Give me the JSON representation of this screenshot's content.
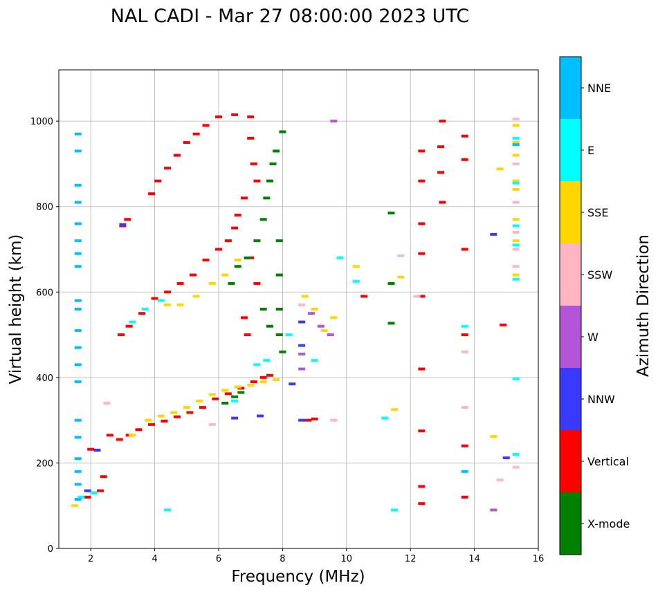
{
  "chart_data": {
    "type": "scatter",
    "title": "NAL CADI - Mar 27 08:00:00 2023 UTC",
    "xlabel": "Frequency (MHz)",
    "ylabel": "Virtual height (km)",
    "xlim": [
      1,
      16
    ],
    "ylim": [
      0,
      1120
    ],
    "xticks": [
      2,
      4,
      6,
      8,
      10,
      12,
      14,
      16
    ],
    "yticks": [
      0,
      200,
      400,
      600,
      800,
      1000
    ],
    "grid": true,
    "colorbar": {
      "label": "Azimuth Direction",
      "categories": [
        {
          "name": "X-mode",
          "color": "#008000"
        },
        {
          "name": "Vertical",
          "color": "#ff0000"
        },
        {
          "name": "NNW",
          "color": "#3a3aff"
        },
        {
          "name": "W",
          "color": "#b455d8"
        },
        {
          "name": "SSW",
          "color": "#ffb6c1"
        },
        {
          "name": "SSE",
          "color": "#ffd700"
        },
        {
          "name": "E",
          "color": "#00ffff"
        },
        {
          "name": "NNE",
          "color": "#00bfff"
        }
      ]
    },
    "series": [
      {
        "name": "Vertical",
        "points": [
          [
            1.9,
            120
          ],
          [
            2.1,
            130
          ],
          [
            2.3,
            135
          ],
          [
            2.0,
            232
          ],
          [
            2.2,
            230
          ],
          [
            2.4,
            168
          ],
          [
            2.6,
            265
          ],
          [
            2.9,
            255
          ],
          [
            3.2,
            265
          ],
          [
            3.5,
            278
          ],
          [
            3.9,
            290
          ],
          [
            4.3,
            298
          ],
          [
            4.7,
            308
          ],
          [
            5.1,
            318
          ],
          [
            5.5,
            330
          ],
          [
            5.9,
            350
          ],
          [
            6.3,
            362
          ],
          [
            6.7,
            375
          ],
          [
            7.1,
            390
          ],
          [
            7.4,
            400
          ],
          [
            7.6,
            405
          ],
          [
            2.95,
            500
          ],
          [
            3.2,
            520
          ],
          [
            3.6,
            550
          ],
          [
            4.0,
            585
          ],
          [
            4.4,
            600
          ],
          [
            4.8,
            620
          ],
          [
            5.2,
            640
          ],
          [
            5.6,
            675
          ],
          [
            6.0,
            700
          ],
          [
            6.3,
            720
          ],
          [
            6.5,
            750
          ],
          [
            6.6,
            780
          ],
          [
            6.8,
            820
          ],
          [
            3.0,
            755
          ],
          [
            3.15,
            770
          ],
          [
            3.9,
            830
          ],
          [
            4.1,
            860
          ],
          [
            4.4,
            890
          ],
          [
            4.7,
            920
          ],
          [
            5.0,
            950
          ],
          [
            5.3,
            970
          ],
          [
            5.6,
            990
          ],
          [
            6.0,
            1010
          ],
          [
            6.5,
            1015
          ],
          [
            7.0,
            1010
          ],
          [
            7.0,
            960
          ],
          [
            7.1,
            900
          ],
          [
            7.2,
            860
          ],
          [
            7.0,
            680
          ],
          [
            7.2,
            620
          ],
          [
            6.8,
            540
          ],
          [
            6.9,
            500
          ],
          [
            8.8,
            300
          ],
          [
            9.0,
            303
          ],
          [
            12.35,
            275
          ],
          [
            12.35,
            420
          ],
          [
            12.35,
            590
          ],
          [
            12.35,
            760
          ],
          [
            12.95,
            940
          ],
          [
            12.95,
            880
          ],
          [
            13.0,
            1000
          ],
          [
            13.0,
            810
          ],
          [
            13.7,
            965
          ],
          [
            13.7,
            910
          ],
          [
            13.7,
            700
          ],
          [
            13.7,
            500
          ],
          [
            13.7,
            240
          ],
          [
            13.7,
            120
          ],
          [
            12.35,
            145
          ],
          [
            12.35,
            105
          ],
          [
            12.35,
            690
          ],
          [
            12.35,
            860
          ],
          [
            12.35,
            930
          ],
          [
            14.9,
            523
          ],
          [
            10.55,
            590
          ]
        ]
      },
      {
        "name": "X-mode",
        "points": [
          [
            6.2,
            340
          ],
          [
            6.5,
            355
          ],
          [
            6.7,
            365
          ],
          [
            6.4,
            620
          ],
          [
            6.6,
            660
          ],
          [
            6.9,
            680
          ],
          [
            7.2,
            720
          ],
          [
            7.4,
            770
          ],
          [
            7.5,
            820
          ],
          [
            7.6,
            860
          ],
          [
            7.7,
            900
          ],
          [
            7.8,
            930
          ],
          [
            7.9,
            720
          ],
          [
            7.9,
            640
          ],
          [
            7.9,
            560
          ],
          [
            7.9,
            500
          ],
          [
            8.0,
            460
          ],
          [
            7.6,
            520
          ],
          [
            7.4,
            560
          ],
          [
            11.4,
            785
          ],
          [
            11.4,
            620
          ],
          [
            11.4,
            527
          ],
          [
            8.0,
            975
          ]
        ]
      },
      {
        "name": "NNW",
        "points": [
          [
            1.9,
            135
          ],
          [
            2.2,
            230
          ],
          [
            3.0,
            758
          ],
          [
            6.5,
            305
          ],
          [
            7.3,
            310
          ],
          [
            8.6,
            300
          ],
          [
            8.6,
            475
          ],
          [
            8.6,
            530
          ],
          [
            8.3,
            385
          ],
          [
            14.6,
            735
          ],
          [
            15.0,
            212
          ]
        ]
      },
      {
        "name": "W",
        "points": [
          [
            8.6,
            455
          ],
          [
            8.9,
            550
          ],
          [
            9.2,
            520
          ],
          [
            9.5,
            500
          ],
          [
            9.6,
            1000
          ],
          [
            14.6,
            90
          ],
          [
            8.6,
            420
          ]
        ]
      },
      {
        "name": "SSW",
        "points": [
          [
            2.5,
            340
          ],
          [
            5.8,
            290
          ],
          [
            8.6,
            570
          ],
          [
            9.6,
            300
          ],
          [
            15.3,
            1005
          ],
          [
            15.3,
            900
          ],
          [
            15.3,
            810
          ],
          [
            15.3,
            740
          ],
          [
            15.3,
            700
          ],
          [
            15.3,
            660
          ],
          [
            15.3,
            190
          ],
          [
            14.8,
            160
          ],
          [
            13.7,
            330
          ],
          [
            13.7,
            460
          ],
          [
            12.2,
            590
          ],
          [
            11.7,
            685
          ]
        ]
      },
      {
        "name": "SSE",
        "points": [
          [
            1.5,
            100
          ],
          [
            3.3,
            265
          ],
          [
            3.8,
            300
          ],
          [
            4.2,
            310
          ],
          [
            4.6,
            318
          ],
          [
            5.0,
            330
          ],
          [
            5.4,
            345
          ],
          [
            5.8,
            360
          ],
          [
            6.2,
            370
          ],
          [
            6.6,
            378
          ],
          [
            7.0,
            382
          ],
          [
            7.4,
            390
          ],
          [
            7.8,
            395
          ],
          [
            4.4,
            570
          ],
          [
            4.8,
            570
          ],
          [
            5.3,
            590
          ],
          [
            5.8,
            620
          ],
          [
            6.2,
            640
          ],
          [
            6.6,
            675
          ],
          [
            8.7,
            590
          ],
          [
            9.0,
            560
          ],
          [
            9.3,
            510
          ],
          [
            9.6,
            540
          ],
          [
            15.3,
            990
          ],
          [
            15.3,
            950
          ],
          [
            15.3,
            920
          ],
          [
            15.3,
            860
          ],
          [
            15.3,
            840
          ],
          [
            15.3,
            770
          ],
          [
            15.3,
            720
          ],
          [
            15.3,
            640
          ],
          [
            14.8,
            888
          ],
          [
            14.6,
            262
          ],
          [
            10.3,
            660
          ],
          [
            11.5,
            325
          ],
          [
            11.7,
            635
          ]
        ]
      },
      {
        "name": "E",
        "points": [
          [
            1.7,
            120
          ],
          [
            2.1,
            130
          ],
          [
            3.3,
            530
          ],
          [
            3.7,
            560
          ],
          [
            4.2,
            580
          ],
          [
            6.5,
            345
          ],
          [
            7.2,
            430
          ],
          [
            7.5,
            440
          ],
          [
            8.2,
            500
          ],
          [
            9.0,
            440
          ],
          [
            9.8,
            680
          ],
          [
            10.3,
            625
          ],
          [
            15.3,
            960
          ],
          [
            15.3,
            855
          ],
          [
            15.3,
            755
          ],
          [
            15.3,
            710
          ],
          [
            15.3,
            630
          ],
          [
            15.3,
            397
          ],
          [
            15.3,
            220
          ],
          [
            13.7,
            520
          ],
          [
            11.2,
            305
          ],
          [
            11.5,
            90
          ],
          [
            4.4,
            90
          ]
        ]
      },
      {
        "name": "NNE",
        "points": [
          [
            1.6,
            970
          ],
          [
            1.6,
            930
          ],
          [
            1.6,
            850
          ],
          [
            1.6,
            810
          ],
          [
            1.6,
            760
          ],
          [
            1.6,
            720
          ],
          [
            1.6,
            690
          ],
          [
            1.6,
            660
          ],
          [
            1.6,
            580
          ],
          [
            1.6,
            560
          ],
          [
            1.6,
            510
          ],
          [
            1.6,
            470
          ],
          [
            1.6,
            430
          ],
          [
            1.6,
            390
          ],
          [
            1.6,
            300
          ],
          [
            1.6,
            260
          ],
          [
            1.6,
            210
          ],
          [
            1.6,
            180
          ],
          [
            1.6,
            150
          ],
          [
            1.6,
            115
          ],
          [
            15.3,
            945
          ],
          [
            13.7,
            180
          ]
        ]
      }
    ]
  }
}
